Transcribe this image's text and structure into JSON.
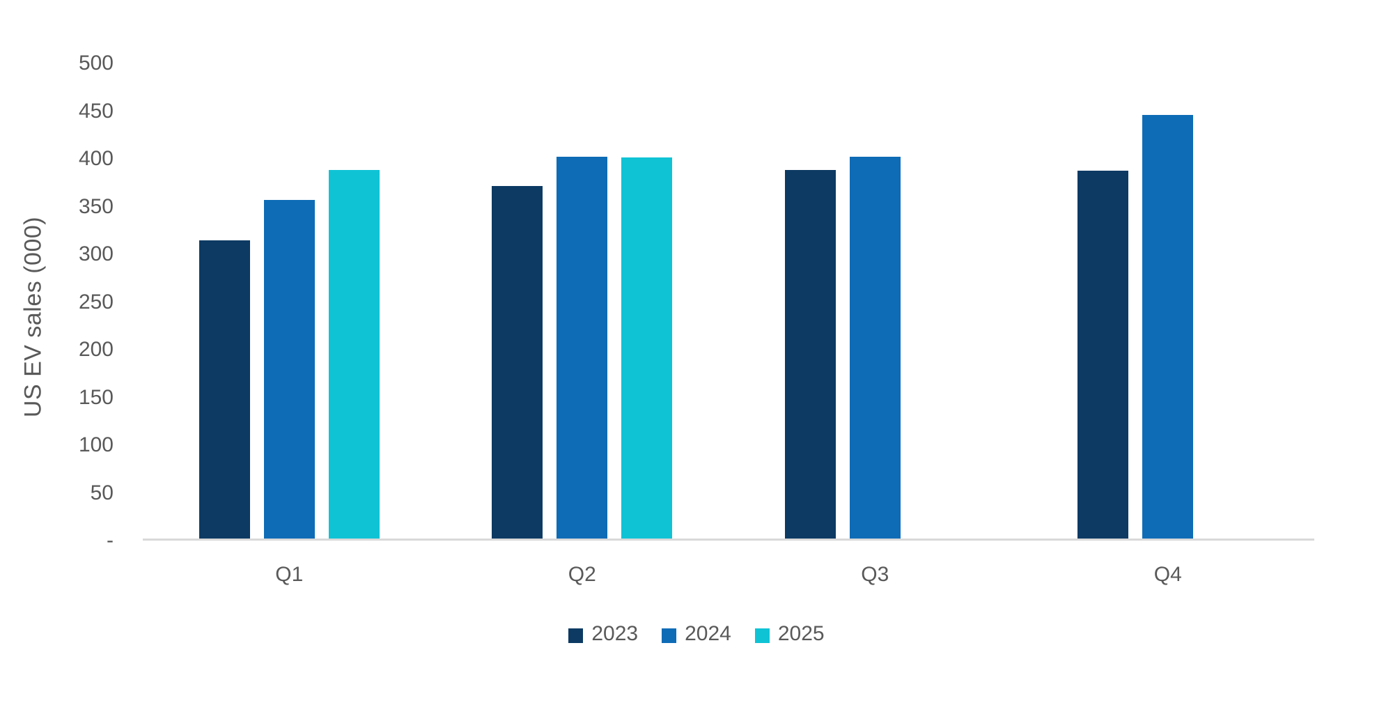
{
  "chart_data": {
    "type": "bar",
    "title": "",
    "ylabel": "US EV sales (000)",
    "xlabel": "",
    "categories": [
      "Q1",
      "Q2",
      "Q3",
      "Q4"
    ],
    "series": [
      {
        "name": "2023",
        "color": "#0c3a63",
        "values": [
          314,
          371,
          388,
          387
        ]
      },
      {
        "name": "2024",
        "color": "#0e6cb6",
        "values": [
          356,
          402,
          402,
          446
        ]
      },
      {
        "name": "2025",
        "color": "#0fc3d5",
        "values": [
          388,
          401,
          null,
          null
        ]
      }
    ],
    "ylim": [
      0,
      500
    ],
    "ytick_step": 50,
    "ytick_labels": [
      "-",
      "50",
      "100",
      "150",
      "200",
      "250",
      "300",
      "350",
      "400",
      "450",
      "500"
    ],
    "grid": false,
    "legend_position": "bottom",
    "colors": {
      "axis_text": "#595959",
      "axis_line": "#d9d9d9",
      "background": "#ffffff"
    }
  }
}
